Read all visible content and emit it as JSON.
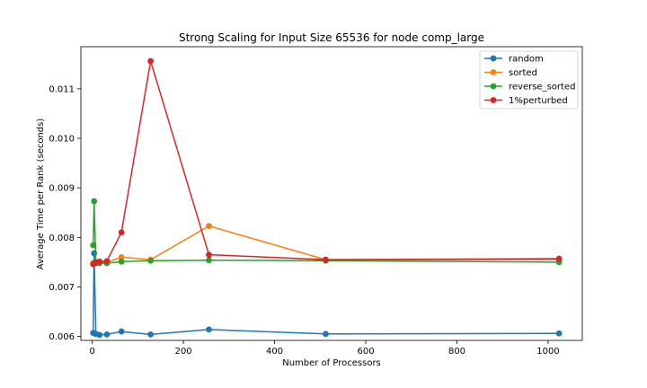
{
  "chart_data": {
    "type": "line",
    "title": "Strong Scaling for Input Size 65536 for node comp_large",
    "xlabel": "Number of Processors",
    "ylabel": "Average Time per Rank (seconds)",
    "xlim": [
      -25,
      1075
    ],
    "ylim": [
      0.00592,
      0.01185
    ],
    "xticks": [
      0,
      200,
      400,
      600,
      800,
      1000
    ],
    "yticks": [
      0.006,
      0.007,
      0.008,
      0.009,
      0.01,
      0.011
    ],
    "xtick_labels": [
      "0",
      "200",
      "400",
      "600",
      "800",
      "1000"
    ],
    "ytick_labels": [
      "0.006",
      "0.007",
      "0.008",
      "0.009",
      "0.010",
      "0.011"
    ],
    "grid": false,
    "legend_position": "top-right",
    "x": [
      2,
      4,
      8,
      16,
      32,
      64,
      128,
      256,
      512,
      1024
    ],
    "series": [
      {
        "name": "random",
        "color": "#1f77b4",
        "values": [
          0.00607,
          0.00768,
          0.00605,
          0.00603,
          0.00604,
          0.0061,
          0.00604,
          0.00614,
          0.00605,
          0.00606
        ]
      },
      {
        "name": "sorted",
        "color": "#ff7f0e",
        "values": [
          0.00748,
          0.00748,
          0.00749,
          0.0075,
          0.0075,
          0.0076,
          0.00755,
          0.00823,
          0.00755,
          0.00755
        ]
      },
      {
        "name": "reverse_sorted",
        "color": "#2ca02c",
        "values": [
          0.00784,
          0.00873,
          0.00748,
          0.00748,
          0.00748,
          0.00751,
          0.00753,
          0.00754,
          0.00753,
          0.0075
        ]
      },
      {
        "name": "1%perturbed",
        "color": "#d62728",
        "values": [
          0.00746,
          0.00748,
          0.0075,
          0.00751,
          0.00752,
          0.0081,
          0.01156,
          0.00765,
          0.00755,
          0.00757
        ]
      }
    ]
  }
}
